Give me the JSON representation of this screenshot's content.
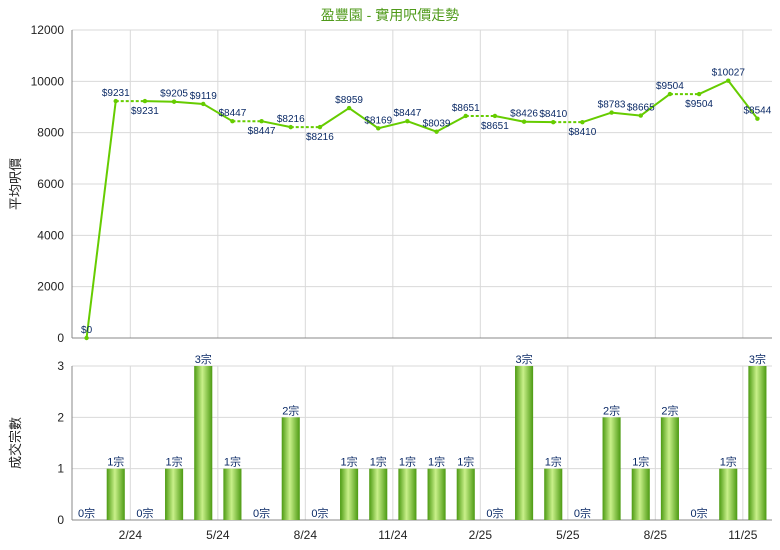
{
  "title": "盈豐園 - 實用呎價走勢",
  "chart_data": [
    {
      "type": "line",
      "ylabel": "平均呎價",
      "ylim": [
        0,
        12000
      ],
      "yticks": [
        "0",
        "2000",
        "4000",
        "6000",
        "8000",
        "10000",
        "12000"
      ],
      "color": "#66cc00",
      "series": [
        {
          "values": [
            0,
            9231,
            9231,
            9205,
            9119,
            8447,
            8447,
            8216,
            8216,
            8959,
            8169,
            8447,
            8039,
            8651,
            8651,
            8426,
            8410,
            8410,
            8783,
            8665,
            9504,
            9504,
            10027,
            8544
          ],
          "labels": [
            "$0",
            "$9231",
            "$9231",
            "$9205",
            "$9119",
            "$8447",
            "$8447",
            "$8216",
            "$8216",
            "$8959",
            "$8169",
            "$8447",
            "$8039",
            "$8651",
            "$8651",
            "$8426",
            "$8410",
            "$8410",
            "$8783",
            "$8665",
            "$9504",
            "$9504",
            "$10027",
            "$8544"
          ]
        }
      ]
    },
    {
      "type": "bar",
      "ylabel": "成交宗數",
      "ylim": [
        0,
        3
      ],
      "yticks": [
        "0",
        "1",
        "2",
        "3"
      ],
      "xticks": [
        "2/24",
        "5/24",
        "8/24",
        "11/24",
        "2/25",
        "5/25",
        "8/25",
        "11/25"
      ],
      "values": [
        0,
        1,
        0,
        1,
        3,
        1,
        0,
        2,
        0,
        1,
        1,
        1,
        1,
        1,
        0,
        3,
        1,
        0,
        2,
        1,
        2,
        0,
        1,
        3
      ],
      "labels": [
        "0宗",
        "1宗",
        "0宗",
        "1宗",
        "3宗",
        "1宗",
        "0宗",
        "2宗",
        "0宗",
        "1宗",
        "1宗",
        "1宗",
        "1宗",
        "1宗",
        "0宗",
        "3宗",
        "1宗",
        "0宗",
        "2宗",
        "1宗",
        "2宗",
        "0宗",
        "1宗",
        "3宗"
      ]
    }
  ]
}
